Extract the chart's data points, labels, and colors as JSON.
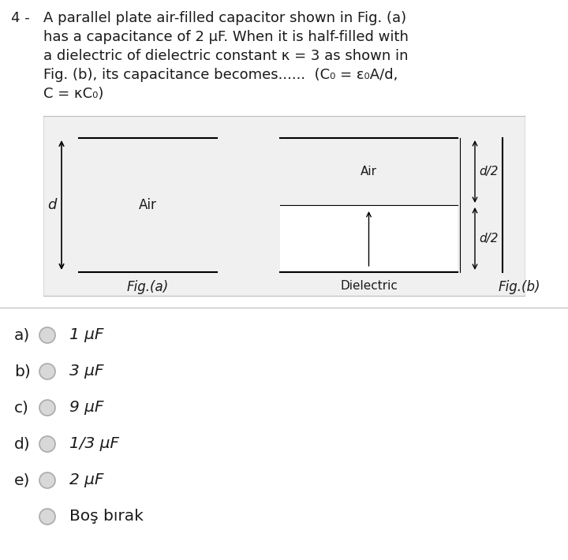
{
  "bg_color": "#ffffff",
  "question_number": "4 -",
  "question_text_lines": [
    "A parallel plate air-filled capacitor shown in Fig. (a)",
    "has a capacitance of 2 μF. When it is half-filled with",
    "a dielectric of dielectric constant κ = 3 as shown in",
    "Fig. (b), its capacitance becomes......  (C₀ = ε₀A/d,",
    "C = κC₀)"
  ],
  "choices": [
    {
      "label": "a)",
      "text": "1 μF"
    },
    {
      "label": "b)",
      "text": "3 μF"
    },
    {
      "label": "c)",
      "text": "9 μF"
    },
    {
      "label": "d)",
      "text": "1/3 μF"
    },
    {
      "label": "e)",
      "text": "2 μF"
    }
  ],
  "last_option": "Boş bırak",
  "fig_a_label": "Fig.(a)",
  "fig_b_label": "Fig.(b)",
  "fig_a_air_label": "Air",
  "fig_a_d_label": "d",
  "fig_b_air_label": "Air",
  "fig_b_dielectric_label": "Dielectric",
  "fig_b_d2_top": "d/2",
  "fig_b_d2_bot": "d/2",
  "plate_color": "#000000",
  "dielectric_hatch": "////",
  "dielectric_fill": "#ffffff",
  "text_color": "#1a1a1a",
  "separator_color": "#bbbbbb",
  "box_bg": "#f0f0f0",
  "box_border": "#cccccc"
}
